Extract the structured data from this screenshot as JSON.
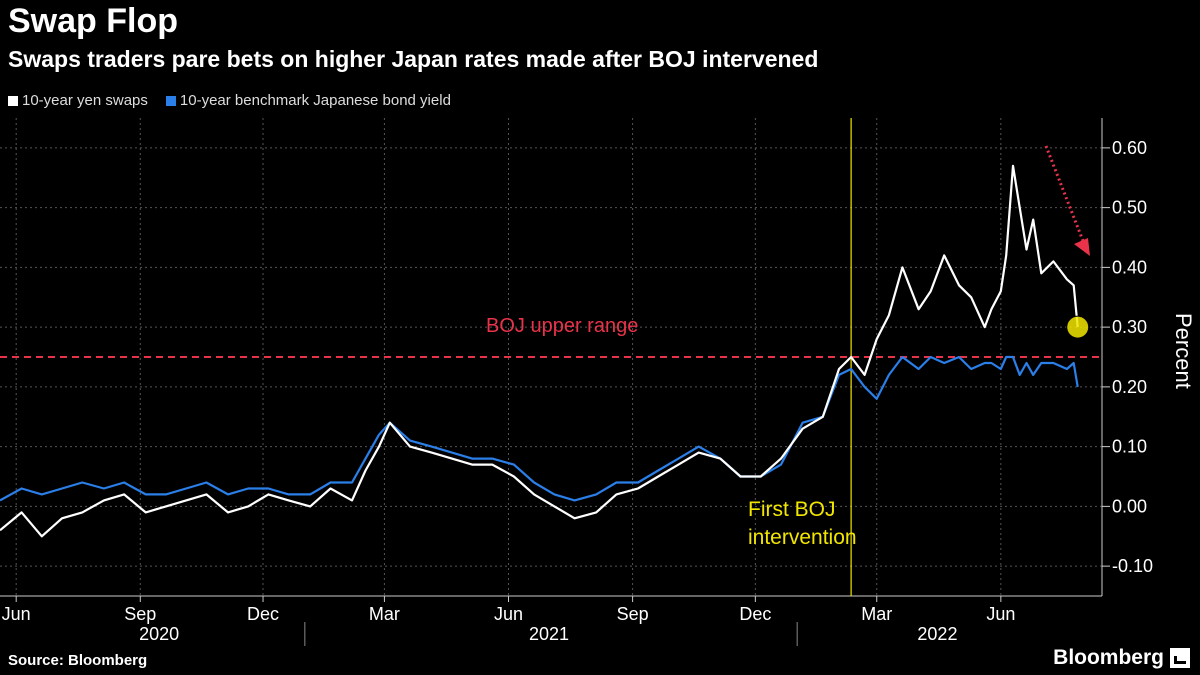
{
  "header": {
    "title": "Swap Flop",
    "subtitle": "Swaps traders pare bets on higher Japan rates made after BOJ intervened"
  },
  "footer": {
    "source": "Source: Bloomberg",
    "brand": "Bloomberg"
  },
  "colors": {
    "swaps": "#ffffff",
    "jgb": "#2a7fe8",
    "boj_upper": "#e8334a",
    "intervention": "#f2e600",
    "grid": "#555555"
  },
  "chart_data": {
    "type": "line",
    "title": "Swap Flop",
    "subtitle": "Swaps traders pare bets on higher Japan rates made after BOJ intervened",
    "ylabel": "Percent",
    "ylim": [
      -0.15,
      0.65
    ],
    "yticks": [
      -0.1,
      0.0,
      0.1,
      0.2,
      0.3,
      0.4,
      0.5,
      0.6
    ],
    "ytick_labels": [
      "-0.10",
      "0.00",
      "0.10",
      "0.20",
      "0.30",
      "0.40",
      "0.50",
      "0.60"
    ],
    "xlim": [
      "2020-05-20",
      "2022-08-15"
    ],
    "xticks": [
      {
        "date": "2020-06-01",
        "label": "Jun"
      },
      {
        "date": "2020-09-01",
        "label": "Sep"
      },
      {
        "date": "2020-12-01",
        "label": "Dec"
      },
      {
        "date": "2021-03-01",
        "label": "Mar"
      },
      {
        "date": "2021-06-01",
        "label": "Jun"
      },
      {
        "date": "2021-09-01",
        "label": "Sep"
      },
      {
        "date": "2021-12-01",
        "label": "Dec"
      },
      {
        "date": "2022-03-01",
        "label": "Mar"
      },
      {
        "date": "2022-06-01",
        "label": "Jun"
      }
    ],
    "year_labels": [
      {
        "date": "2020-09-15",
        "label": "2020"
      },
      {
        "date": "2021-07-01",
        "label": "2021"
      },
      {
        "date": "2022-04-15",
        "label": "2022"
      }
    ],
    "year_dividers": [
      "2021-01-01",
      "2022-01-01"
    ],
    "legend_position": "top-left",
    "grid": true,
    "series": [
      {
        "name": "10-year yen swaps",
        "x": [
          "2020-05-20",
          "2020-06-05",
          "2020-06-20",
          "2020-07-05",
          "2020-07-20",
          "2020-08-05",
          "2020-08-20",
          "2020-09-05",
          "2020-09-20",
          "2020-10-05",
          "2020-10-20",
          "2020-11-05",
          "2020-11-20",
          "2020-12-05",
          "2020-12-20",
          "2021-01-05",
          "2021-01-20",
          "2021-02-05",
          "2021-02-15",
          "2021-02-25",
          "2021-03-05",
          "2021-03-20",
          "2021-04-05",
          "2021-04-20",
          "2021-05-05",
          "2021-05-20",
          "2021-06-05",
          "2021-06-20",
          "2021-07-05",
          "2021-07-20",
          "2021-08-05",
          "2021-08-20",
          "2021-09-05",
          "2021-09-20",
          "2021-10-05",
          "2021-10-20",
          "2021-11-05",
          "2021-11-20",
          "2021-12-05",
          "2021-12-20",
          "2022-01-05",
          "2022-01-20",
          "2022-02-01",
          "2022-02-10",
          "2022-02-20",
          "2022-03-01",
          "2022-03-10",
          "2022-03-20",
          "2022-04-01",
          "2022-04-10",
          "2022-04-20",
          "2022-05-01",
          "2022-05-10",
          "2022-05-20",
          "2022-05-25",
          "2022-06-01",
          "2022-06-05",
          "2022-06-10",
          "2022-06-15",
          "2022-06-20",
          "2022-06-25",
          "2022-07-01",
          "2022-07-10",
          "2022-07-20",
          "2022-07-25",
          "2022-07-28"
        ],
        "values": [
          -0.04,
          -0.01,
          -0.05,
          -0.02,
          -0.01,
          0.01,
          0.02,
          -0.01,
          0.0,
          0.01,
          0.02,
          -0.01,
          0.0,
          0.02,
          0.01,
          0.0,
          0.03,
          0.01,
          0.06,
          0.1,
          0.14,
          0.1,
          0.09,
          0.08,
          0.07,
          0.07,
          0.05,
          0.02,
          0.0,
          -0.02,
          -0.01,
          0.02,
          0.03,
          0.05,
          0.07,
          0.09,
          0.08,
          0.05,
          0.05,
          0.08,
          0.13,
          0.15,
          0.23,
          0.25,
          0.22,
          0.28,
          0.32,
          0.4,
          0.33,
          0.36,
          0.42,
          0.37,
          0.35,
          0.3,
          0.33,
          0.36,
          0.42,
          0.57,
          0.5,
          0.43,
          0.48,
          0.39,
          0.41,
          0.38,
          0.37,
          0.3
        ]
      },
      {
        "name": "10-year benchmark Japanese bond yield",
        "x": [
          "2020-05-20",
          "2020-06-05",
          "2020-06-20",
          "2020-07-05",
          "2020-07-20",
          "2020-08-05",
          "2020-08-20",
          "2020-09-05",
          "2020-09-20",
          "2020-10-05",
          "2020-10-20",
          "2020-11-05",
          "2020-11-20",
          "2020-12-05",
          "2020-12-20",
          "2021-01-05",
          "2021-01-20",
          "2021-02-05",
          "2021-02-15",
          "2021-02-25",
          "2021-03-05",
          "2021-03-20",
          "2021-04-05",
          "2021-04-20",
          "2021-05-05",
          "2021-05-20",
          "2021-06-05",
          "2021-06-20",
          "2021-07-05",
          "2021-07-20",
          "2021-08-05",
          "2021-08-20",
          "2021-09-05",
          "2021-09-20",
          "2021-10-05",
          "2021-10-20",
          "2021-11-05",
          "2021-11-20",
          "2021-12-05",
          "2021-12-20",
          "2022-01-05",
          "2022-01-20",
          "2022-02-01",
          "2022-02-10",
          "2022-02-20",
          "2022-03-01",
          "2022-03-10",
          "2022-03-20",
          "2022-04-01",
          "2022-04-10",
          "2022-04-20",
          "2022-05-01",
          "2022-05-10",
          "2022-05-20",
          "2022-05-25",
          "2022-06-01",
          "2022-06-05",
          "2022-06-10",
          "2022-06-15",
          "2022-06-20",
          "2022-06-25",
          "2022-07-01",
          "2022-07-10",
          "2022-07-20",
          "2022-07-25",
          "2022-07-28"
        ],
        "values": [
          0.01,
          0.03,
          0.02,
          0.03,
          0.04,
          0.03,
          0.04,
          0.02,
          0.02,
          0.03,
          0.04,
          0.02,
          0.03,
          0.03,
          0.02,
          0.02,
          0.04,
          0.04,
          0.08,
          0.12,
          0.14,
          0.11,
          0.1,
          0.09,
          0.08,
          0.08,
          0.07,
          0.04,
          0.02,
          0.01,
          0.02,
          0.04,
          0.04,
          0.06,
          0.08,
          0.1,
          0.08,
          0.05,
          0.05,
          0.07,
          0.14,
          0.15,
          0.22,
          0.23,
          0.2,
          0.18,
          0.22,
          0.25,
          0.23,
          0.25,
          0.24,
          0.25,
          0.23,
          0.24,
          0.24,
          0.23,
          0.25,
          0.25,
          0.22,
          0.24,
          0.22,
          0.24,
          0.24,
          0.23,
          0.24,
          0.2
        ]
      }
    ],
    "annotations": [
      {
        "text": "BOJ upper range",
        "type": "hline",
        "y": 0.25
      },
      {
        "text": "First BOJ\nintervention",
        "type": "vline",
        "x": "2022-02-10"
      }
    ]
  }
}
